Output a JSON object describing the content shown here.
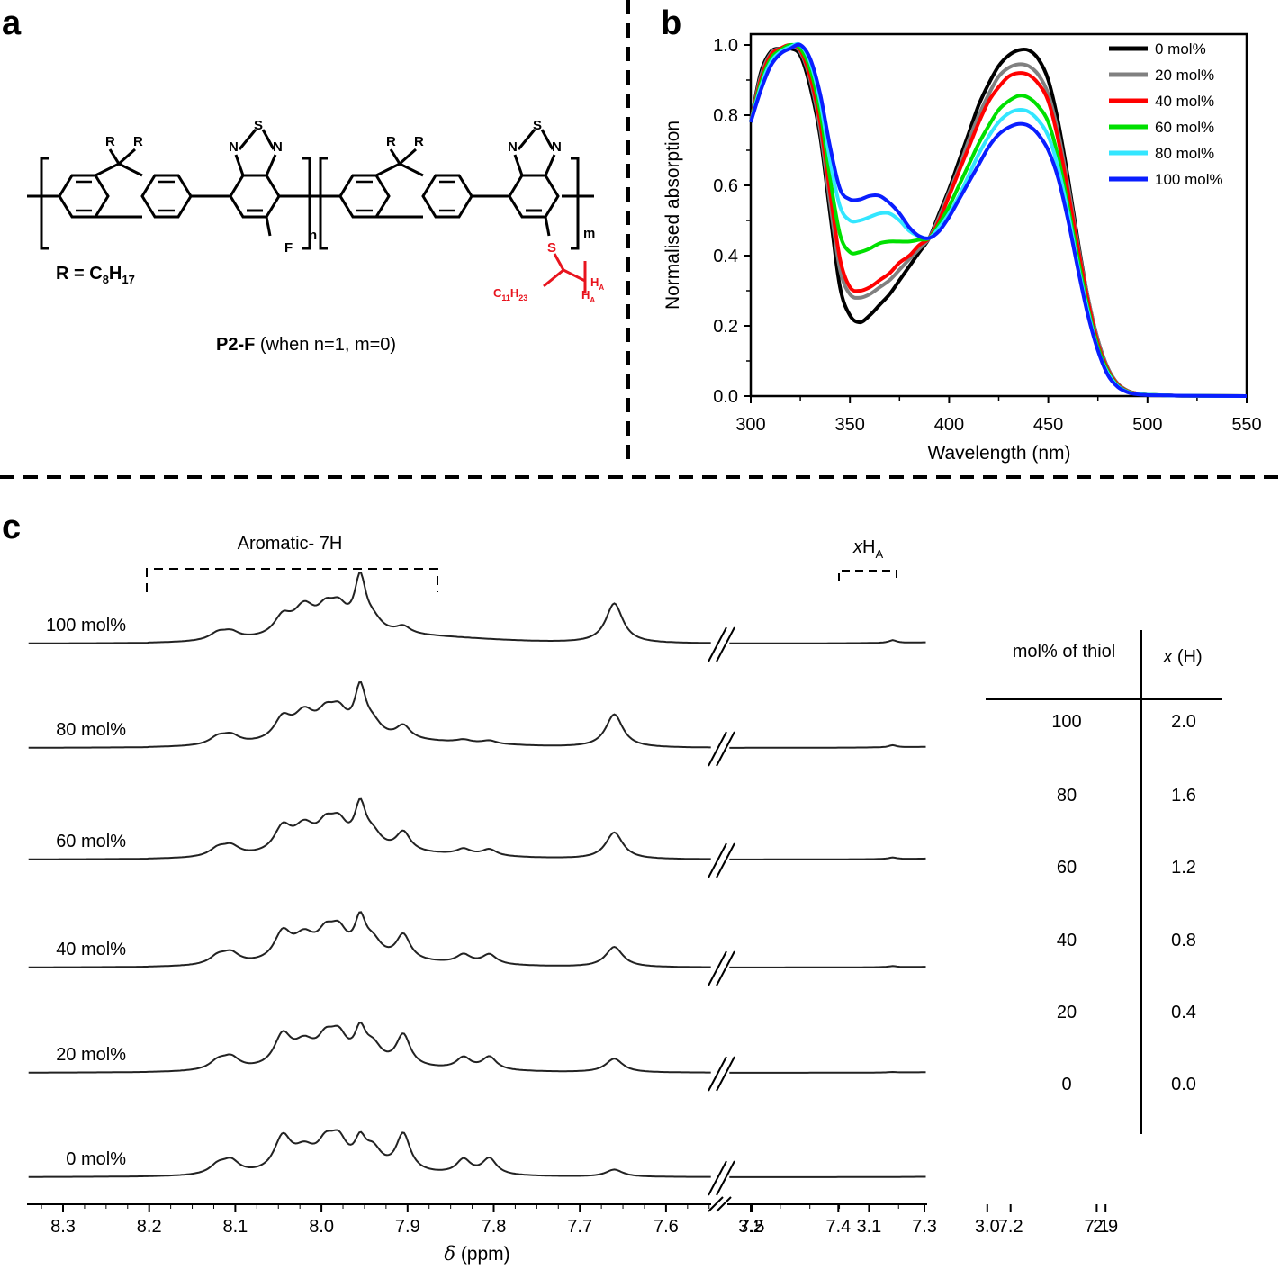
{
  "panels": {
    "a": {
      "letter": "a",
      "r_def": {
        "prefix": "R = C",
        "sub1": "8",
        "mid": "H",
        "sub2": "17"
      },
      "atoms": {
        "R": "R",
        "S": "S",
        "N": "N",
        "F": "F",
        "n": "n",
        "m": "m",
        "C": "C",
        "c_sub": "11",
        "H": "H",
        "h_sub": "23",
        "HA": "H",
        "a_sub": "A"
      },
      "caption_bold": "P2-F",
      "caption_rest": " (when n=1, m=0)"
    },
    "b": {
      "letter": "b"
    },
    "c": {
      "letter": "c",
      "aromatic_label": "Aromatic- 7H",
      "xha_label": {
        "x": "x",
        "h": "H",
        "sub": "A"
      },
      "spectra_labels": [
        "100 mol%",
        "80 mol%",
        "60 mol%",
        "40 mol%",
        "20 mol%",
        "0 mol%"
      ],
      "axis_ticks_left": [
        "8.3",
        "8.2",
        "8.1",
        "8.0",
        "7.9",
        "7.8",
        "7.7",
        "7.6",
        "7.5",
        "7.4",
        "7.3",
        "7.2",
        "7.1"
      ],
      "axis_ticks_right": [
        "3.2",
        "3.1",
        "3.0",
        "2.9"
      ],
      "axis_title": {
        "delta": "δ",
        "unit": " (ppm)"
      },
      "table": {
        "headers": [
          "mol% of thiol",
          "x",
          " (H)"
        ],
        "rows": [
          {
            "mol": "100",
            "x": "2.0"
          },
          {
            "mol": "80",
            "x": "1.6"
          },
          {
            "mol": "60",
            "x": "1.2"
          },
          {
            "mol": "40",
            "x": "0.8"
          },
          {
            "mol": "20",
            "x": "0.4"
          },
          {
            "mol": "0",
            "x": "0.0"
          }
        ]
      }
    }
  },
  "chart_data": {
    "type": "line",
    "title": "",
    "xlabel": "Wavelength (nm)",
    "ylabel": "Normalised absorption",
    "xlim": [
      300,
      550
    ],
    "ylim": [
      0.0,
      1.0
    ],
    "xticks": [
      "300",
      "350",
      "400",
      "450",
      "500",
      "550"
    ],
    "yticks": [
      "0.0",
      "0.2",
      "0.4",
      "0.6",
      "0.8",
      "1.0"
    ],
    "legend_position": "top-right",
    "x": [
      300,
      305,
      310,
      315,
      320,
      325,
      330,
      335,
      340,
      345,
      350,
      355,
      360,
      365,
      370,
      375,
      380,
      385,
      390,
      395,
      400,
      405,
      410,
      415,
      420,
      425,
      430,
      435,
      440,
      445,
      450,
      455,
      460,
      465,
      470,
      475,
      480,
      485,
      490,
      495,
      500,
      510,
      520,
      550
    ],
    "series": [
      {
        "name": "0 mol%",
        "color": "#000000",
        "values": [
          0.78,
          0.92,
          0.98,
          0.99,
          0.99,
          0.97,
          0.88,
          0.74,
          0.52,
          0.31,
          0.23,
          0.21,
          0.23,
          0.26,
          0.29,
          0.33,
          0.37,
          0.41,
          0.45,
          0.52,
          0.59,
          0.67,
          0.75,
          0.83,
          0.89,
          0.94,
          0.97,
          0.985,
          0.985,
          0.96,
          0.9,
          0.78,
          0.62,
          0.44,
          0.28,
          0.16,
          0.08,
          0.035,
          0.015,
          0.007,
          0.004,
          0.002,
          0.001,
          0.0
        ]
      },
      {
        "name": "20 mol%",
        "color": "#808080",
        "values": [
          0.78,
          0.91,
          0.975,
          0.99,
          0.995,
          0.98,
          0.9,
          0.76,
          0.55,
          0.36,
          0.29,
          0.28,
          0.29,
          0.31,
          0.33,
          0.36,
          0.39,
          0.42,
          0.45,
          0.51,
          0.58,
          0.65,
          0.73,
          0.8,
          0.86,
          0.91,
          0.935,
          0.945,
          0.94,
          0.915,
          0.86,
          0.75,
          0.6,
          0.43,
          0.28,
          0.16,
          0.08,
          0.035,
          0.015,
          0.007,
          0.004,
          0.002,
          0.001,
          0.0
        ]
      },
      {
        "name": "40 mol%",
        "color": "#ff0000",
        "values": [
          0.78,
          0.9,
          0.97,
          0.99,
          1.0,
          0.985,
          0.91,
          0.78,
          0.58,
          0.39,
          0.31,
          0.3,
          0.31,
          0.33,
          0.35,
          0.38,
          0.4,
          0.43,
          0.45,
          0.5,
          0.57,
          0.64,
          0.71,
          0.78,
          0.84,
          0.88,
          0.91,
          0.92,
          0.915,
          0.89,
          0.84,
          0.73,
          0.58,
          0.42,
          0.27,
          0.15,
          0.075,
          0.033,
          0.014,
          0.007,
          0.004,
          0.002,
          0.001,
          0.0
        ]
      },
      {
        "name": "60 mol%",
        "color": "#00e000",
        "values": [
          0.78,
          0.89,
          0.96,
          0.985,
          1.0,
          0.99,
          0.93,
          0.81,
          0.62,
          0.46,
          0.41,
          0.41,
          0.42,
          0.435,
          0.44,
          0.44,
          0.44,
          0.445,
          0.45,
          0.49,
          0.54,
          0.6,
          0.66,
          0.72,
          0.77,
          0.815,
          0.84,
          0.855,
          0.85,
          0.825,
          0.78,
          0.68,
          0.54,
          0.39,
          0.25,
          0.14,
          0.07,
          0.03,
          0.013,
          0.006,
          0.004,
          0.002,
          0.001,
          0.0
        ]
      },
      {
        "name": "80 mol%",
        "color": "#33e6ff",
        "values": [
          0.78,
          0.88,
          0.95,
          0.98,
          0.995,
          1.0,
          0.95,
          0.84,
          0.67,
          0.54,
          0.5,
          0.5,
          0.51,
          0.52,
          0.52,
          0.5,
          0.47,
          0.455,
          0.45,
          0.48,
          0.52,
          0.57,
          0.63,
          0.69,
          0.74,
          0.78,
          0.805,
          0.815,
          0.81,
          0.785,
          0.74,
          0.65,
          0.52,
          0.37,
          0.24,
          0.13,
          0.065,
          0.028,
          0.012,
          0.006,
          0.004,
          0.002,
          0.001,
          0.0
        ]
      },
      {
        "name": "100 mol%",
        "color": "#0a1eff",
        "values": [
          0.78,
          0.87,
          0.94,
          0.975,
          0.99,
          1.0,
          0.96,
          0.86,
          0.71,
          0.59,
          0.56,
          0.56,
          0.57,
          0.57,
          0.55,
          0.52,
          0.48,
          0.455,
          0.45,
          0.47,
          0.51,
          0.56,
          0.61,
          0.66,
          0.71,
          0.745,
          0.765,
          0.775,
          0.77,
          0.745,
          0.7,
          0.62,
          0.5,
          0.36,
          0.23,
          0.13,
          0.06,
          0.026,
          0.011,
          0.005,
          0.003,
          0.002,
          0.001,
          0.0
        ]
      }
    ]
  }
}
